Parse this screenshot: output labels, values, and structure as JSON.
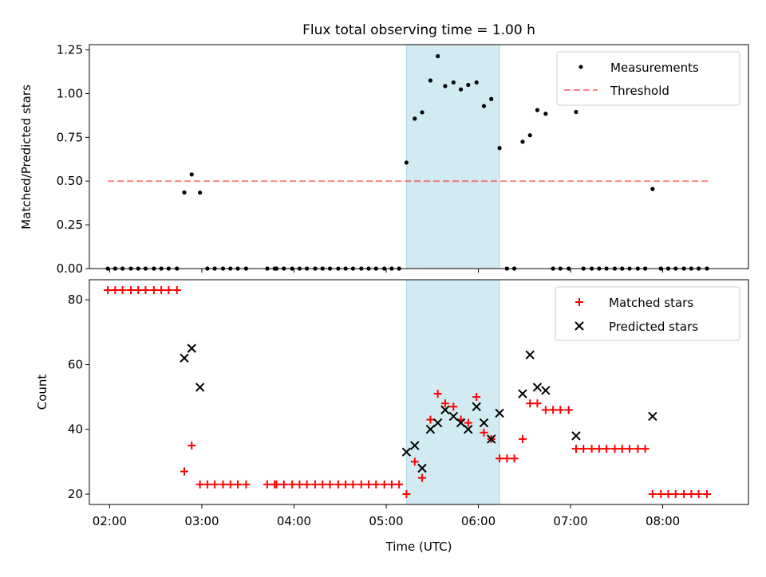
{
  "title": "Flux total observing time = 1.00 h",
  "colors": {
    "shade": "#add8e6",
    "threshold": "#ff0000",
    "matched": "#ff0000",
    "predicted": "#000000",
    "measurement": "#000000"
  },
  "chart_data": [
    {
      "type": "scatter",
      "ylabel": "Matched/Predicted stars",
      "ylim": [
        0,
        1.28
      ],
      "yticks": [
        0,
        0.25,
        0.5,
        0.75,
        1.0,
        1.25
      ],
      "ytick_labels": [
        "0.00",
        "0.25",
        "0.50",
        "0.75",
        "1.00",
        "1.25"
      ],
      "xlim": [
        1.78,
        8.93
      ],
      "xticks": [
        2,
        3,
        4,
        5,
        6,
        7,
        8
      ],
      "shaded_span": [
        5.22,
        6.23
      ],
      "threshold": 0.5,
      "threshold_x": [
        1.98,
        8.52
      ],
      "legend": {
        "placement": "top-right",
        "entries": [
          "Measurements",
          "Threshold"
        ]
      },
      "series": [
        {
          "name": "Measurements",
          "x": [
            1.98,
            2.06,
            2.14,
            2.23,
            2.31,
            2.39,
            2.48,
            2.56,
            2.64,
            2.73,
            2.81,
            2.89,
            2.98,
            3.06,
            3.14,
            3.23,
            3.31,
            3.39,
            3.48,
            3.71,
            3.79,
            3.81,
            3.89,
            3.98,
            4.06,
            4.14,
            4.23,
            4.31,
            4.39,
            4.48,
            4.56,
            4.64,
            4.73,
            4.81,
            4.89,
            4.98,
            5.06,
            5.14,
            5.22,
            5.31,
            5.39,
            5.48,
            5.56,
            5.64,
            5.73,
            5.81,
            5.89,
            5.98,
            6.06,
            6.14,
            6.23,
            6.31,
            6.39,
            6.48,
            6.56,
            6.64,
            6.73,
            6.81,
            6.89,
            6.98,
            7.06,
            7.14,
            7.23,
            7.31,
            7.39,
            7.48,
            7.56,
            7.64,
            7.73,
            7.81,
            7.89,
            7.98,
            8.06,
            8.14,
            8.23,
            8.31,
            8.39,
            8.48
          ],
          "y": [
            0,
            0,
            0,
            0,
            0,
            0,
            0,
            0,
            0,
            0,
            0.435,
            0.538,
            0.434,
            0,
            0,
            0,
            0,
            0,
            0,
            0,
            0,
            0,
            0,
            0,
            0,
            0,
            0,
            0,
            0,
            0,
            0,
            0,
            0,
            0,
            0,
            0,
            0,
            0,
            0.606,
            0.857,
            0.893,
            1.075,
            1.214,
            1.043,
            1.064,
            1.024,
            1.05,
            1.064,
            0.929,
            0.969,
            0.689,
            0,
            0,
            0.725,
            0.762,
            0.906,
            0.885,
            0,
            0,
            0,
            0.895,
            0,
            0,
            0,
            0,
            0,
            0,
            0,
            0,
            0,
            0.455,
            0,
            0,
            0,
            0,
            0,
            0,
            0
          ]
        }
      ]
    },
    {
      "type": "scatter",
      "xlabel": "Time (UTC)",
      "ylabel": "Count",
      "ylim": [
        16.8,
        86.2
      ],
      "yticks": [
        20,
        40,
        60,
        80
      ],
      "ytick_labels": [
        "20",
        "40",
        "60",
        "80"
      ],
      "xlim": [
        1.78,
        8.93
      ],
      "xticks": [
        2,
        3,
        4,
        5,
        6,
        7,
        8
      ],
      "xtick_labels": [
        "02:00",
        "03:00",
        "04:00",
        "05:00",
        "06:00",
        "07:00",
        "08:00"
      ],
      "shaded_span": [
        5.22,
        6.23
      ],
      "legend": {
        "placement": "top-right",
        "entries": [
          "Matched stars",
          "Predicted stars"
        ]
      },
      "series": [
        {
          "name": "Matched stars",
          "x": [
            1.98,
            2.06,
            2.14,
            2.23,
            2.31,
            2.39,
            2.48,
            2.56,
            2.64,
            2.73,
            2.81,
            2.89,
            2.98,
            3.06,
            3.14,
            3.23,
            3.31,
            3.39,
            3.48,
            3.71,
            3.79,
            3.81,
            3.89,
            3.98,
            4.06,
            4.14,
            4.23,
            4.31,
            4.39,
            4.48,
            4.56,
            4.64,
            4.73,
            4.81,
            4.89,
            4.98,
            5.06,
            5.14,
            5.22,
            5.31,
            5.39,
            5.48,
            5.56,
            5.64,
            5.73,
            5.81,
            5.89,
            5.98,
            6.06,
            6.14,
            6.23,
            6.31,
            6.39,
            6.48,
            6.56,
            6.64,
            6.73,
            6.81,
            6.89,
            6.98,
            7.06,
            7.14,
            7.23,
            7.31,
            7.39,
            7.48,
            7.56,
            7.64,
            7.73,
            7.81,
            7.89,
            7.98,
            8.06,
            8.14,
            8.23,
            8.31,
            8.39,
            8.48
          ],
          "y": [
            83,
            83,
            83,
            83,
            83,
            83,
            83,
            83,
            83,
            83,
            27,
            35,
            23,
            23,
            23,
            23,
            23,
            23,
            23,
            23,
            23,
            23,
            23,
            23,
            23,
            23,
            23,
            23,
            23,
            23,
            23,
            23,
            23,
            23,
            23,
            23,
            23,
            23,
            20,
            30,
            25,
            43,
            51,
            48,
            47,
            43,
            42,
            50,
            39,
            37,
            31,
            31,
            31,
            37,
            48,
            48,
            46,
            46,
            46,
            46,
            34,
            34,
            34,
            34,
            34,
            34,
            34,
            34,
            34,
            34,
            20,
            20,
            20,
            20,
            20,
            20,
            20,
            20
          ]
        },
        {
          "name": "Predicted stars",
          "x": [
            2.81,
            2.89,
            2.98,
            5.22,
            5.31,
            5.39,
            5.48,
            5.56,
            5.64,
            5.73,
            5.81,
            5.89,
            5.98,
            6.06,
            6.14,
            6.23,
            6.48,
            6.56,
            6.64,
            6.73,
            7.06,
            7.89
          ],
          "y": [
            62,
            65,
            53,
            33,
            35,
            28,
            40,
            42,
            46,
            44,
            42,
            40,
            47,
            42,
            37,
            45,
            51,
            63,
            53,
            52,
            38,
            44
          ]
        }
      ]
    }
  ]
}
